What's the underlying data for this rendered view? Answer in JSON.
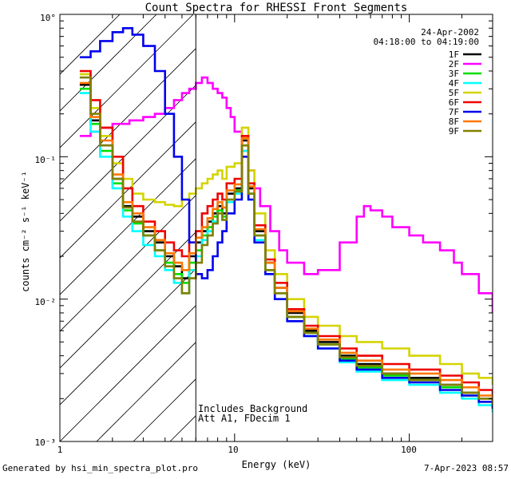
{
  "chart_data": {
    "type": "line",
    "title": "Count Spectra for RHESSI Front Segments",
    "xlabel": "Energy (keV)",
    "ylabel": "counts cm⁻² s⁻¹ keV⁻¹",
    "xscale": "log",
    "yscale": "log",
    "xlim": [
      1,
      300
    ],
    "ylim": [
      0.001,
      1
    ],
    "x_tick_labels": [
      "1",
      "10",
      "100"
    ],
    "y_tick_labels": [
      "10°",
      "10⁻¹",
      "10⁻²",
      "10⁻³"
    ],
    "date": "24-Apr-2002",
    "time_range": "04:18:00 to 04:19:00",
    "annotations": [
      "Includes Background",
      "Att A1, FDecim 1"
    ],
    "attenuated_region_max_kev": 6,
    "series": [
      {
        "name": "1F",
        "color": "#000000",
        "x": [
          1.3,
          1.5,
          1.7,
          2.0,
          2.3,
          2.6,
          3.0,
          3.5,
          4.0,
          4.5,
          5.0,
          5.5,
          6,
          6.5,
          7,
          7.5,
          8,
          8.5,
          9,
          10,
          11,
          12,
          13,
          15,
          17,
          20,
          25,
          30,
          40,
          50,
          70,
          100,
          150,
          200,
          250,
          300
        ],
        "y": [
          0.32,
          0.18,
          0.12,
          0.07,
          0.045,
          0.038,
          0.03,
          0.025,
          0.02,
          0.017,
          0.014,
          0.02,
          0.025,
          0.03,
          0.035,
          0.04,
          0.045,
          0.04,
          0.055,
          0.06,
          0.13,
          0.06,
          0.03,
          0.018,
          0.012,
          0.008,
          0.006,
          0.005,
          0.004,
          0.0035,
          0.003,
          0.0028,
          0.0025,
          0.0022,
          0.002,
          0.0018
        ]
      },
      {
        "name": "2F",
        "color": "#ff00ff",
        "x": [
          1.3,
          1.5,
          1.7,
          2.0,
          2.5,
          3.0,
          3.5,
          4.0,
          4.5,
          5.0,
          5.5,
          6,
          6.5,
          7,
          7.5,
          8,
          8.5,
          9,
          9.5,
          10,
          11,
          12,
          13,
          14,
          16,
          18,
          20,
          25,
          30,
          40,
          50,
          55,
          60,
          70,
          80,
          100,
          120,
          150,
          180,
          200,
          250,
          300
        ],
        "y": [
          0.14,
          0.15,
          0.16,
          0.17,
          0.18,
          0.19,
          0.2,
          0.22,
          0.25,
          0.28,
          0.3,
          0.33,
          0.36,
          0.33,
          0.3,
          0.28,
          0.26,
          0.22,
          0.19,
          0.15,
          0.11,
          0.08,
          0.06,
          0.045,
          0.03,
          0.022,
          0.018,
          0.015,
          0.016,
          0.025,
          0.038,
          0.045,
          0.042,
          0.038,
          0.032,
          0.028,
          0.025,
          0.022,
          0.018,
          0.015,
          0.011,
          0.008
        ]
      },
      {
        "name": "3F",
        "color": "#00dd00",
        "x": [
          1.3,
          1.5,
          1.7,
          2.0,
          2.3,
          2.6,
          3.0,
          3.5,
          4.0,
          4.5,
          5.0,
          5.5,
          6,
          6.5,
          7,
          7.5,
          8,
          8.5,
          9,
          10,
          11,
          12,
          13,
          15,
          17,
          20,
          25,
          30,
          40,
          50,
          70,
          100,
          150,
          200,
          250,
          300
        ],
        "y": [
          0.3,
          0.17,
          0.11,
          0.065,
          0.042,
          0.034,
          0.028,
          0.022,
          0.018,
          0.015,
          0.013,
          0.018,
          0.022,
          0.028,
          0.032,
          0.038,
          0.042,
          0.038,
          0.05,
          0.058,
          0.12,
          0.055,
          0.028,
          0.016,
          0.011,
          0.0075,
          0.0058,
          0.0048,
          0.0038,
          0.0033,
          0.0029,
          0.0027,
          0.0024,
          0.0021,
          0.0019,
          0.0017
        ]
      },
      {
        "name": "4F",
        "color": "#00ffff",
        "x": [
          1.3,
          1.5,
          1.7,
          2.0,
          2.3,
          2.6,
          3.0,
          3.5,
          4.0,
          4.5,
          5.0,
          5.5,
          6,
          6.5,
          7,
          7.5,
          8,
          8.5,
          9,
          10,
          11,
          12,
          13,
          15,
          17,
          20,
          25,
          30,
          40,
          50,
          70,
          100,
          150,
          200,
          250,
          300
        ],
        "y": [
          0.28,
          0.15,
          0.1,
          0.06,
          0.038,
          0.03,
          0.024,
          0.02,
          0.016,
          0.013,
          0.011,
          0.016,
          0.02,
          0.026,
          0.03,
          0.035,
          0.04,
          0.036,
          0.048,
          0.055,
          0.11,
          0.05,
          0.026,
          0.015,
          0.01,
          0.007,
          0.0055,
          0.0045,
          0.0036,
          0.0031,
          0.0027,
          0.0025,
          0.0022,
          0.002,
          0.0018,
          0.0016
        ]
      },
      {
        "name": "5F",
        "color": "#d4d400",
        "x": [
          1.3,
          1.5,
          1.7,
          2.0,
          2.3,
          2.6,
          3.0,
          3.5,
          4.0,
          4.5,
          5.0,
          5.5,
          6,
          6.5,
          7,
          7.5,
          8,
          8.5,
          9,
          10,
          11,
          12,
          13,
          15,
          17,
          20,
          25,
          30,
          40,
          50,
          70,
          100,
          150,
          200,
          250,
          300
        ],
        "y": [
          0.38,
          0.22,
          0.14,
          0.09,
          0.07,
          0.055,
          0.05,
          0.048,
          0.046,
          0.045,
          0.05,
          0.055,
          0.06,
          0.065,
          0.07,
          0.075,
          0.08,
          0.07,
          0.085,
          0.09,
          0.16,
          0.08,
          0.04,
          0.022,
          0.015,
          0.01,
          0.0075,
          0.0065,
          0.0055,
          0.005,
          0.0045,
          0.004,
          0.0035,
          0.003,
          0.0028,
          0.0025
        ]
      },
      {
        "name": "6F",
        "color": "#ee0000",
        "x": [
          1.3,
          1.5,
          1.7,
          2.0,
          2.3,
          2.6,
          3.0,
          3.5,
          4.0,
          4.5,
          5.0,
          5.5,
          6,
          6.5,
          7,
          7.5,
          8,
          8.5,
          9,
          10,
          11,
          12,
          13,
          15,
          17,
          20,
          25,
          30,
          40,
          50,
          70,
          100,
          150,
          200,
          250,
          300
        ],
        "y": [
          0.4,
          0.25,
          0.16,
          0.1,
          0.06,
          0.045,
          0.035,
          0.03,
          0.025,
          0.022,
          0.02,
          0.025,
          0.03,
          0.04,
          0.045,
          0.05,
          0.055,
          0.05,
          0.065,
          0.07,
          0.14,
          0.065,
          0.033,
          0.019,
          0.013,
          0.0085,
          0.0065,
          0.0055,
          0.0045,
          0.004,
          0.0035,
          0.0032,
          0.0029,
          0.0026,
          0.0023,
          0.0021
        ]
      },
      {
        "name": "7F",
        "color": "#0000ee",
        "x": [
          1.3,
          1.5,
          1.7,
          2.0,
          2.3,
          2.6,
          3.0,
          3.5,
          4.0,
          4.5,
          5.0,
          5.5,
          6,
          6.5,
          7,
          7.5,
          8,
          8.5,
          9,
          10,
          11,
          12,
          13,
          15,
          17,
          20,
          25,
          30,
          40,
          50,
          70,
          100,
          150,
          200,
          250,
          300
        ],
        "y": [
          0.5,
          0.55,
          0.65,
          0.75,
          0.8,
          0.72,
          0.6,
          0.4,
          0.2,
          0.1,
          0.05,
          0.025,
          0.015,
          0.014,
          0.016,
          0.02,
          0.025,
          0.03,
          0.04,
          0.05,
          0.1,
          0.05,
          0.025,
          0.015,
          0.01,
          0.007,
          0.0055,
          0.0045,
          0.0037,
          0.0032,
          0.0028,
          0.0026,
          0.0023,
          0.0021,
          0.0019,
          0.0017
        ]
      },
      {
        "name": "8F",
        "color": "#ff7700",
        "x": [
          1.3,
          1.5,
          1.7,
          2.0,
          2.3,
          2.6,
          3.0,
          3.5,
          4.0,
          4.5,
          5.0,
          5.5,
          6,
          6.5,
          7,
          7.5,
          8,
          8.5,
          9,
          10,
          11,
          12,
          13,
          15,
          17,
          20,
          25,
          30,
          40,
          50,
          70,
          100,
          150,
          200,
          250,
          300
        ],
        "y": [
          0.33,
          0.19,
          0.13,
          0.075,
          0.048,
          0.04,
          0.032,
          0.026,
          0.021,
          0.018,
          0.016,
          0.021,
          0.027,
          0.032,
          0.037,
          0.043,
          0.048,
          0.044,
          0.058,
          0.064,
          0.135,
          0.062,
          0.031,
          0.018,
          0.012,
          0.0082,
          0.0062,
          0.0052,
          0.0042,
          0.0037,
          0.0032,
          0.003,
          0.0027,
          0.0024,
          0.0021,
          0.0019
        ]
      },
      {
        "name": "9F",
        "color": "#808000",
        "x": [
          1.3,
          1.5,
          1.7,
          2.0,
          2.3,
          2.6,
          3.0,
          3.5,
          4.0,
          4.5,
          5.0,
          5.5,
          6,
          6.5,
          7,
          7.5,
          8,
          8.5,
          9,
          10,
          11,
          12,
          13,
          15,
          17,
          20,
          25,
          30,
          40,
          50,
          70,
          100,
          150,
          200,
          250,
          300
        ],
        "y": [
          0.36,
          0.2,
          0.12,
          0.07,
          0.044,
          0.035,
          0.028,
          0.022,
          0.017,
          0.014,
          0.011,
          0.014,
          0.018,
          0.024,
          0.028,
          0.034,
          0.04,
          0.036,
          0.05,
          0.057,
          0.12,
          0.055,
          0.028,
          0.016,
          0.011,
          0.0075,
          0.0058,
          0.0048,
          0.0039,
          0.0034,
          0.003,
          0.0027,
          0.0025,
          0.0022,
          0.002,
          0.0018
        ]
      }
    ]
  },
  "footer": {
    "generated_by": "Generated by hsi_min_spectra_plot.pro",
    "timestamp": "7-Apr-2023 08:57"
  }
}
